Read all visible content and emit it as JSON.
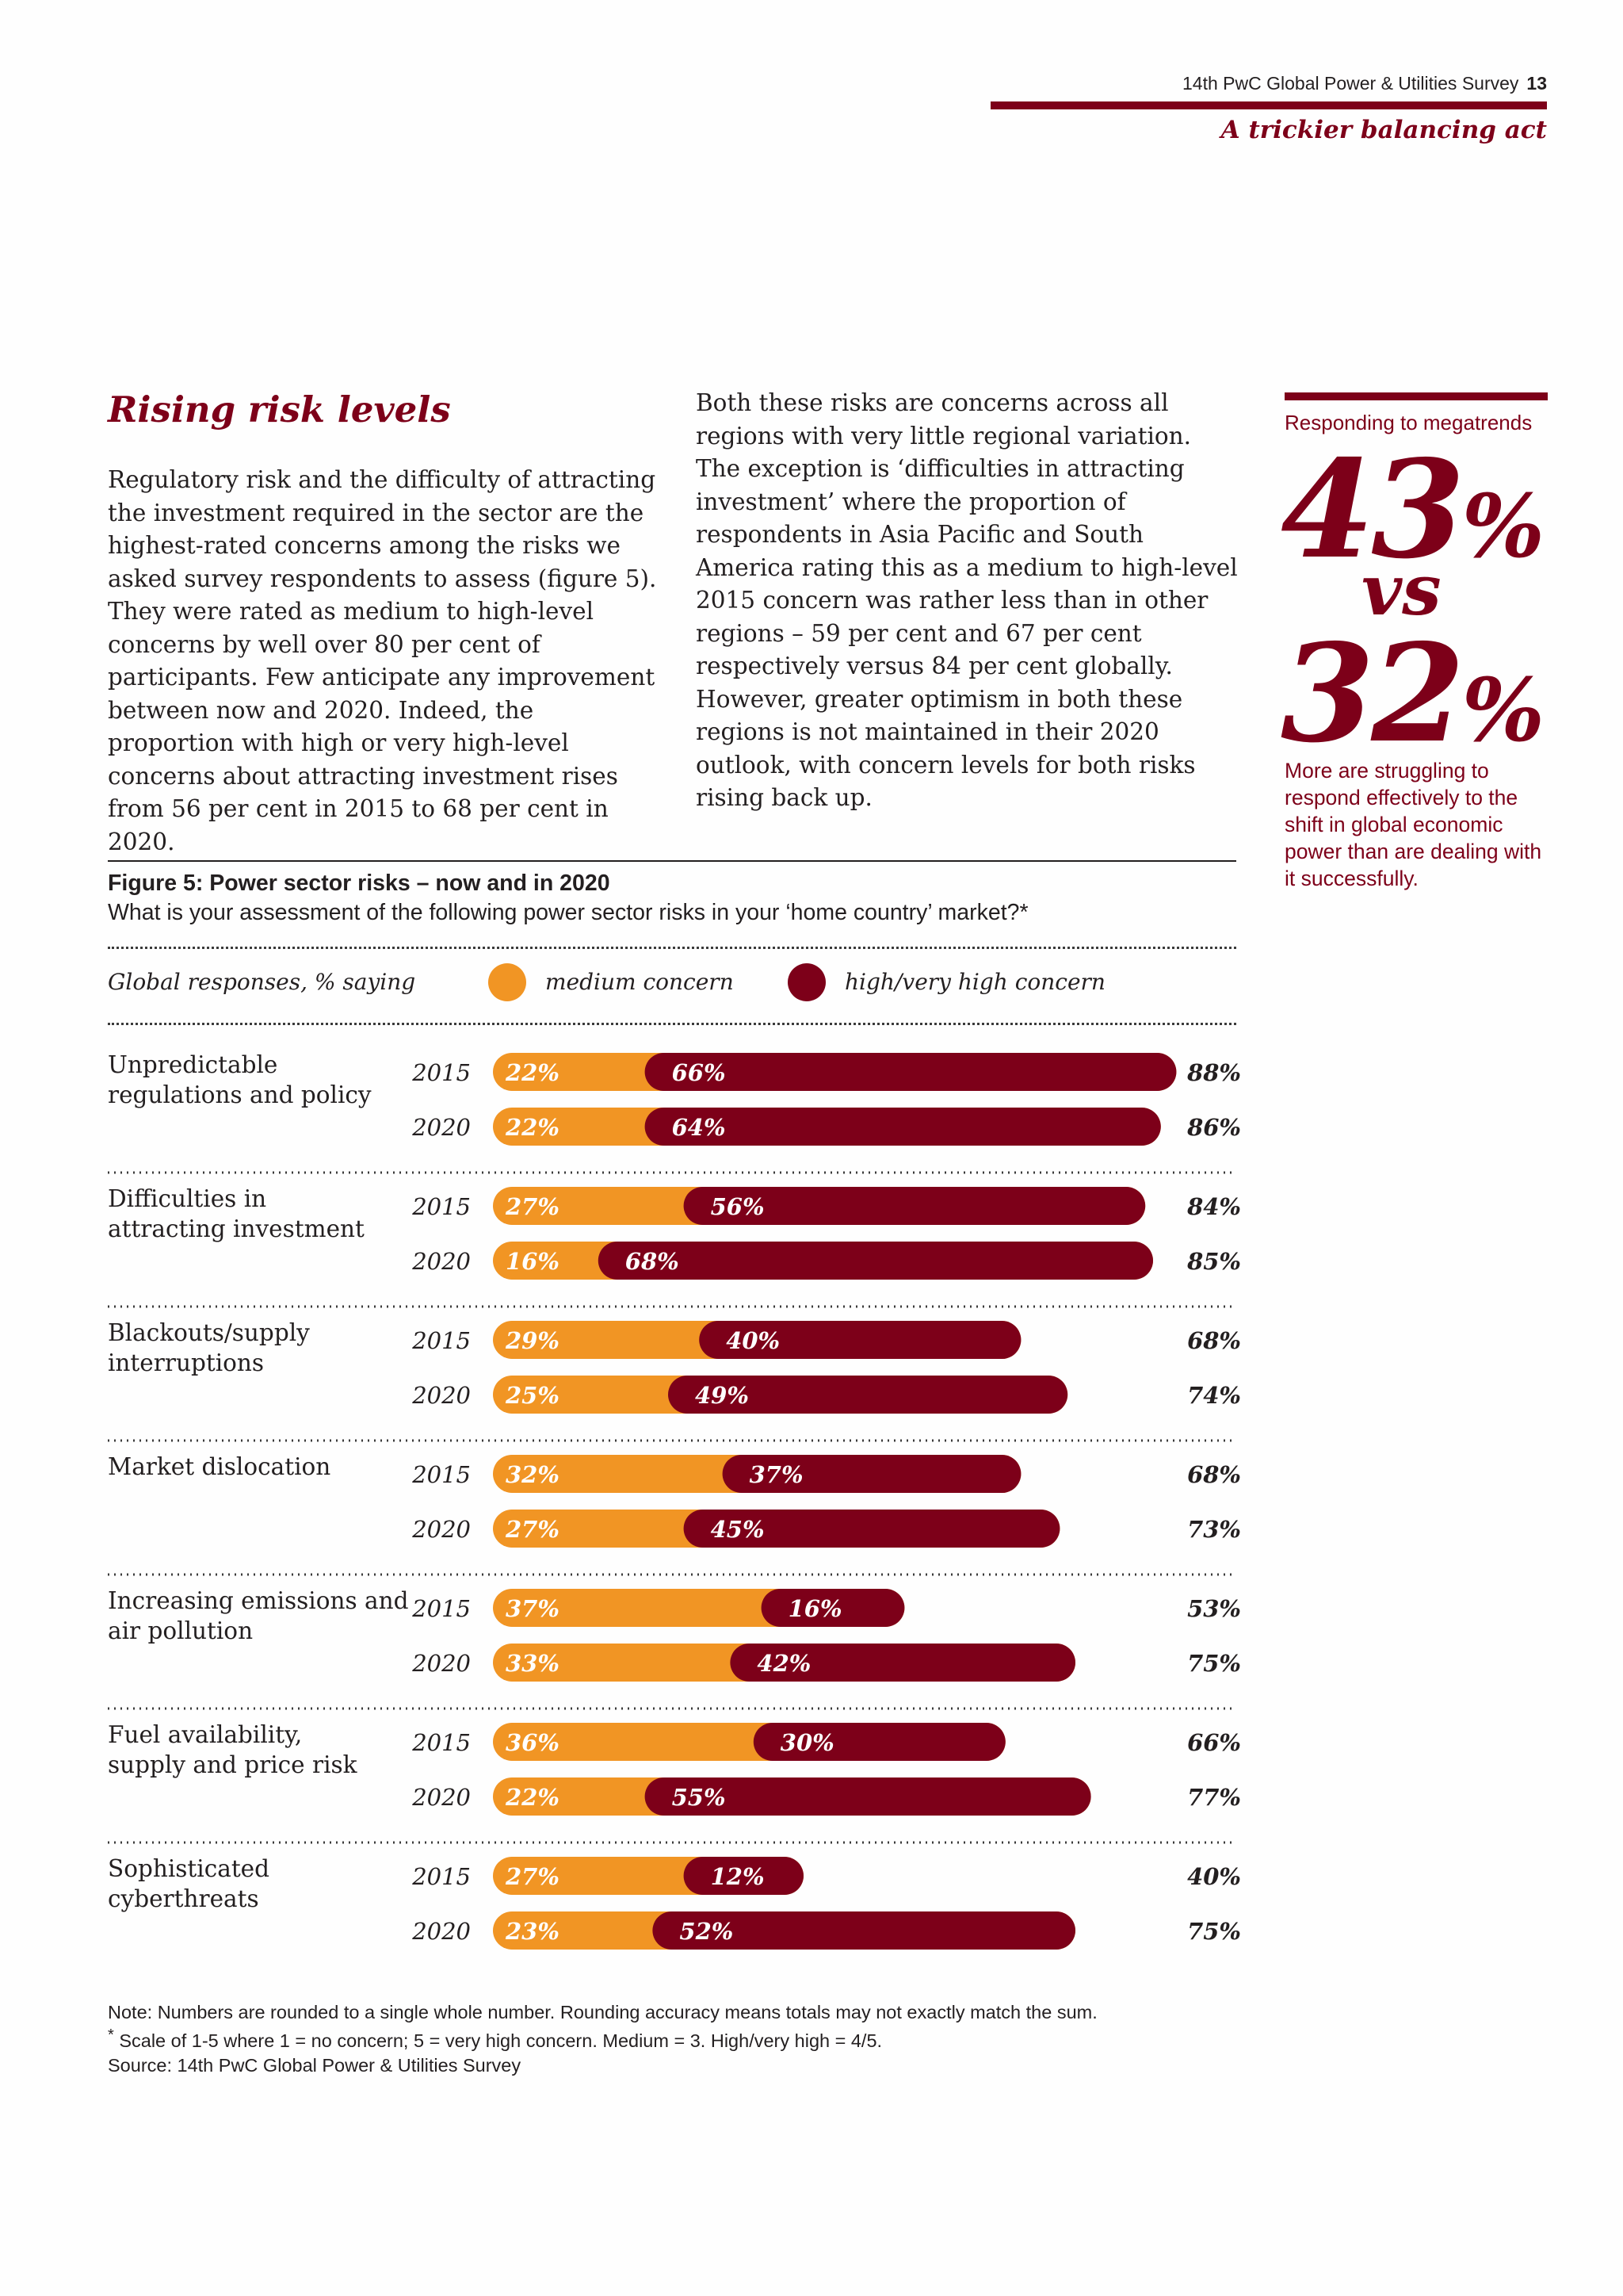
{
  "header": {
    "running_head": "14th PwC Global Power & Utilities Survey",
    "page_number": "13",
    "section_title": "A trickier balancing act"
  },
  "article": {
    "title": "Rising risk levels",
    "col1": "Regulatory risk and the difficulty of attracting the investment required in the sector are the highest-rated concerns among the risks we asked survey respondents to assess (figure 5). They were rated as medium to high-level concerns by well over 80 per cent of participants. Few anticipate any improvement between now and 2020. Indeed, the proportion with high or very high-level concerns about attracting investment rises from 56 per cent in 2015 to 68 per cent in 2020.",
    "col2": "Both these risks are concerns across all regions with very little regional variation. The exception is ‘difficulties in attracting investment’ where the proportion of respondents in Asia Pacific and South America rating this as a medium to high-level 2015 concern was rather less than in other regions – 59 per cent and 67 per cent respectively versus 84 per cent globally. However, greater optimism in both these regions is not maintained in their 2020 outlook, with concern levels for both risks rising back up."
  },
  "sidebar": {
    "label": "Responding to megatrends",
    "stat_a": "43",
    "stat_vs": "vs",
    "stat_b": "32",
    "pct_symbol": "%",
    "caption": "More are struggling to respond effectively to the shift in global economic power than are dealing with it successfully."
  },
  "figure": {
    "title": "Figure 5: Power sector risks – now and in 2020",
    "subtitle": "What is your assessment of the following power sector risks in your ‘home country’ market?*",
    "legend_label": "Global responses, % saying",
    "legend_medium": "medium concern",
    "legend_high": "high/very high concern",
    "notes": {
      "line1": "Note: Numbers are rounded to a single whole number. Rounding accuracy means totals may not exactly match the sum.",
      "line2_mark": "*",
      "line2": "Scale of 1-5 where 1 = no concern; 5 = very high concern. Medium = 3. High/very high = 4/5.",
      "source": "Source: 14th PwC Global Power & Utilities Survey"
    }
  },
  "colors": {
    "medium": "#f19524",
    "high": "#7d0019",
    "text": "#231f20"
  },
  "chart_data": {
    "type": "bar",
    "stacked": true,
    "orientation": "horizontal",
    "title": "Figure 5: Power sector risks – now and in 2020",
    "series": [
      {
        "name": "medium concern",
        "color": "#f19524"
      },
      {
        "name": "high/very high concern",
        "color": "#7d0019"
      }
    ],
    "categories": [
      {
        "label": "Unpredictable regulations and policy",
        "rows": [
          {
            "year": "2015",
            "medium": 22,
            "high": 66,
            "total": 88
          },
          {
            "year": "2020",
            "medium": 22,
            "high": 64,
            "total": 86
          }
        ]
      },
      {
        "label": "Difficulties in attracting investment",
        "rows": [
          {
            "year": "2015",
            "medium": 27,
            "high": 56,
            "total": 84
          },
          {
            "year": "2020",
            "medium": 16,
            "high": 68,
            "total": 85
          }
        ]
      },
      {
        "label": "Blackouts/supply interruptions",
        "rows": [
          {
            "year": "2015",
            "medium": 29,
            "high": 40,
            "total": 68
          },
          {
            "year": "2020",
            "medium": 25,
            "high": 49,
            "total": 74
          }
        ]
      },
      {
        "label": "Market dislocation",
        "rows": [
          {
            "year": "2015",
            "medium": 32,
            "high": 37,
            "total": 68
          },
          {
            "year": "2020",
            "medium": 27,
            "high": 45,
            "total": 73
          }
        ]
      },
      {
        "label": "Increasing emissions and air pollution",
        "rows": [
          {
            "year": "2015",
            "medium": 37,
            "high": 16,
            "total": 53
          },
          {
            "year": "2020",
            "medium": 33,
            "high": 42,
            "total": 75
          }
        ]
      },
      {
        "label": "Fuel availability, supply and price risk",
        "rows": [
          {
            "year": "2015",
            "medium": 36,
            "high": 30,
            "total": 66
          },
          {
            "year": "2020",
            "medium": 22,
            "high": 55,
            "total": 77
          }
        ]
      },
      {
        "label": "Sophisticated cyberthreats",
        "rows": [
          {
            "year": "2015",
            "medium": 27,
            "high": 12,
            "total": 40
          },
          {
            "year": "2020",
            "medium": 23,
            "high": 52,
            "total": 75
          }
        ]
      }
    ],
    "value_suffix": "%",
    "xlim": [
      0,
      100
    ],
    "grid": false,
    "legend_position": "top"
  }
}
